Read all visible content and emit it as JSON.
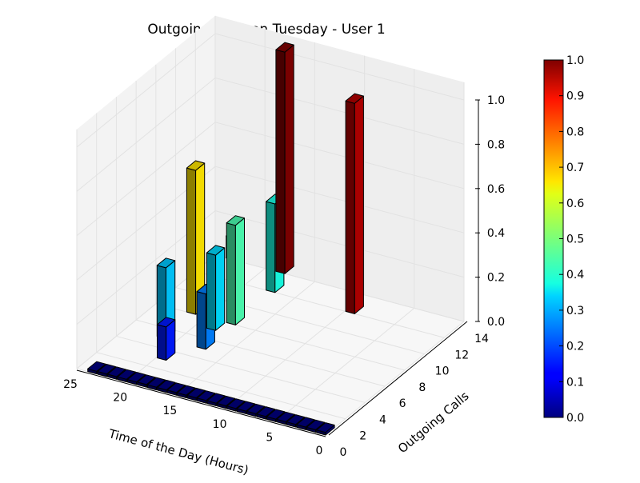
{
  "chart_data": {
    "type": "bar3d",
    "title": "Outgoing Calls on Tuesday - User 1",
    "xlabel": "Time of the Day (Hours)",
    "ylabel": "Outgoing Calls",
    "zlabel": "",
    "xlim": [
      0,
      25
    ],
    "ylim": [
      0,
      14
    ],
    "zlim": [
      0,
      1.0
    ],
    "x_ticks": [
      "0",
      "5",
      "10",
      "15",
      "20",
      "25"
    ],
    "y_ticks": [
      "0",
      "2",
      "4",
      "6",
      "8",
      "10",
      "12",
      "14"
    ],
    "z_ticks": [
      "0.0",
      "0.2",
      "0.4",
      "0.6",
      "0.8",
      "1.0"
    ],
    "grid": true,
    "colormap": "jet",
    "colorbar": {
      "ticks": [
        "0.0",
        "0.1",
        "0.2",
        "0.3",
        "0.4",
        "0.5",
        "0.6",
        "0.7",
        "0.8",
        "0.9",
        "1.0"
      ],
      "range": [
        0,
        1.0
      ]
    },
    "bars": [
      {
        "hour": 0,
        "calls": 0,
        "value": 0.0
      },
      {
        "hour": 1,
        "calls": 0,
        "value": 0.0
      },
      {
        "hour": 2,
        "calls": 0,
        "value": 0.0
      },
      {
        "hour": 3,
        "calls": 0,
        "value": 0.0
      },
      {
        "hour": 4,
        "calls": 0,
        "value": 0.0
      },
      {
        "hour": 5,
        "calls": 0,
        "value": 0.0
      },
      {
        "hour": 6,
        "calls": 0,
        "value": 0.0
      },
      {
        "hour": 7,
        "calls": 0,
        "value": 0.0
      },
      {
        "hour": 8,
        "calls": 0,
        "value": 0.0
      },
      {
        "hour": 9,
        "calls": 0,
        "value": 0.0
      },
      {
        "hour": 10,
        "calls": 0,
        "value": 0.0
      },
      {
        "hour": 11,
        "calls": 0,
        "value": 0.0
      },
      {
        "hour": 12,
        "calls": 0,
        "value": 0.0
      },
      {
        "hour": 13,
        "calls": 0,
        "value": 0.0
      },
      {
        "hour": 14,
        "calls": 0,
        "value": 0.0
      },
      {
        "hour": 15,
        "calls": 0,
        "value": 0.0
      },
      {
        "hour": 16,
        "calls": 0,
        "value": 0.0
      },
      {
        "hour": 17,
        "calls": 0,
        "value": 0.0
      },
      {
        "hour": 18,
        "calls": 0,
        "value": 0.0
      },
      {
        "hour": 19,
        "calls": 0,
        "value": 0.0
      },
      {
        "hour": 20,
        "calls": 0,
        "value": 0.0
      },
      {
        "hour": 21,
        "calls": 0,
        "value": 0.0
      },
      {
        "hour": 22,
        "calls": 0,
        "value": 0.0
      },
      {
        "hour": 23,
        "calls": 0,
        "value": 0.0
      },
      {
        "hour": 9,
        "calls": 12,
        "value": 0.95
      },
      {
        "hour": 17,
        "calls": 5,
        "value": 0.25
      },
      {
        "hour": 17,
        "calls": 8,
        "value": 0.45
      },
      {
        "hour": 17,
        "calls": 12,
        "value": 0.4
      },
      {
        "hour": 19,
        "calls": 3,
        "value": 0.15
      },
      {
        "hour": 18,
        "calls": 7,
        "value": 0.34
      },
      {
        "hour": 21,
        "calls": 5,
        "value": 0.32
      },
      {
        "hour": 21,
        "calls": 8,
        "value": 0.65
      },
      {
        "hour": 18,
        "calls": 14,
        "value": 1.0
      },
      {
        "hour": 23,
        "calls": 14,
        "value": 0.1
      }
    ]
  }
}
